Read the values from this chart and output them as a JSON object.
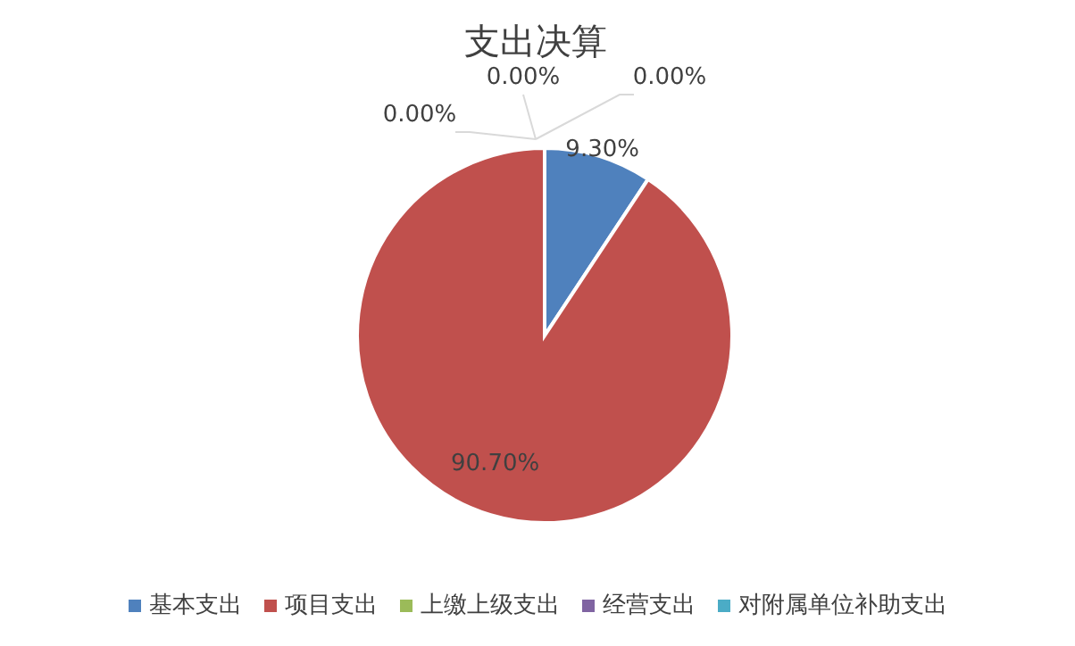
{
  "chart_data": {
    "type": "pie",
    "title": "支出决算",
    "categories": [
      "基本支出",
      "项目支出",
      "上缴上级支出",
      "经营支出",
      "对附属单位补助支出"
    ],
    "values": [
      9.3,
      90.7,
      0,
      0,
      0
    ],
    "value_labels": [
      "9.30%",
      "90.70%",
      "0.00%",
      "0.00%",
      "0.00%"
    ],
    "colors": [
      "#4f81bd",
      "#c0504d",
      "#9bbb59",
      "#8064a2",
      "#4bacc6"
    ],
    "legend": "bottom"
  }
}
